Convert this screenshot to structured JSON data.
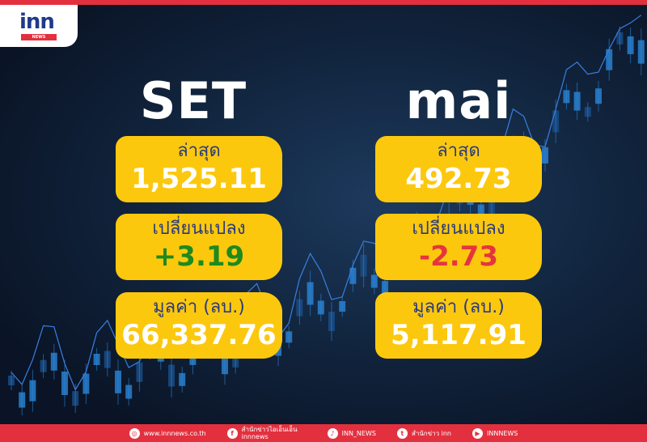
{
  "brand": {
    "logo": "inn",
    "logo_sub": "NEWS",
    "accent": "#e3303f",
    "card_color": "#fcc80e"
  },
  "markets": [
    {
      "name": "SET",
      "latest_label": "ล่าสุด",
      "latest": "1,525.11",
      "change_label": "เปลี่ยนแปลง",
      "change": "+3.19",
      "value_label": "มูลค่า (ลบ.)",
      "value": "66,337.76"
    },
    {
      "name": "mai",
      "latest_label": "ล่าสุด",
      "latest": "492.73",
      "change_label": "เปลี่ยนแปลง",
      "change": "-2.73",
      "value_label": "มูลค่า (ลบ.)",
      "value": "5,117.91"
    }
  ],
  "footer": [
    {
      "icon": "globe-icon",
      "text": "www.innnews.co.th"
    },
    {
      "icon": "facebook-icon",
      "text": "สำนักข่าวไอเอ็นเอ็น innnews"
    },
    {
      "icon": "tiktok-icon",
      "text": "INN_NEWS"
    },
    {
      "icon": "twitter-icon",
      "text": "สำนักข่าว inn"
    },
    {
      "icon": "youtube-icon",
      "text": "INNNEWS"
    }
  ]
}
